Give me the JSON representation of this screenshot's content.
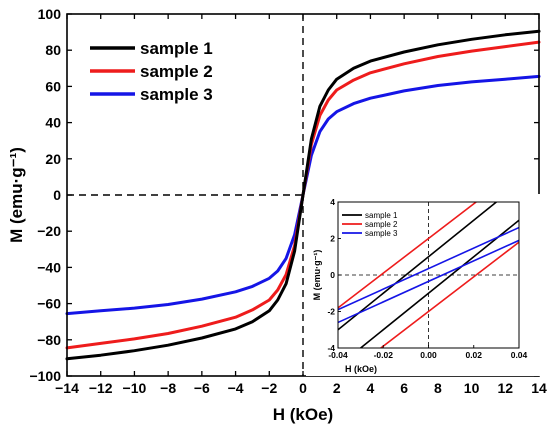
{
  "chart_data": [
    {
      "type": "line",
      "title": "",
      "xlabel": "H (kOe)",
      "ylabel": "M (emu·g⁻¹)",
      "xlim": [
        -14,
        14
      ],
      "ylim": [
        -100,
        100
      ],
      "x_ticks": [
        -14,
        -12,
        -10,
        -8,
        -6,
        -4,
        -2,
        0,
        2,
        4,
        6,
        8,
        10,
        12,
        14
      ],
      "y_ticks": [
        -100,
        -80,
        -60,
        -40,
        -20,
        0,
        20,
        40,
        60,
        80,
        100
      ],
      "grid": false,
      "legend_position": "top-left",
      "reference_lines": {
        "x": 0,
        "y": 0,
        "style": "dashed"
      },
      "x": [
        -14,
        -12,
        -10,
        -8,
        -6,
        -4,
        -3,
        -2,
        -1.5,
        -1,
        -0.5,
        0,
        0.5,
        1,
        1.5,
        2,
        3,
        4,
        6,
        8,
        10,
        12,
        14
      ],
      "series": [
        {
          "name": "sample 1",
          "color": "#000000",
          "values": [
            -90.5,
            -88.5,
            -86,
            -83,
            -79,
            -74,
            -70,
            -64,
            -58,
            -49,
            -31,
            0,
            31,
            49,
            58,
            64,
            70,
            74,
            79,
            83,
            86,
            88.5,
            90.5
          ]
        },
        {
          "name": "sample 2",
          "color": "#ee1c1c",
          "values": [
            -84.5,
            -82,
            -79.5,
            -76.5,
            -72.5,
            -67.5,
            -63.5,
            -58,
            -52.5,
            -44,
            -28,
            0,
            28,
            44,
            52.5,
            58,
            63.5,
            67.5,
            72.5,
            76.5,
            79.5,
            82,
            84.5
          ]
        },
        {
          "name": "sample 3",
          "color": "#1515e6",
          "values": [
            -65.5,
            -64,
            -62.5,
            -60.5,
            -57.5,
            -53.5,
            -50.5,
            -46,
            -42,
            -35,
            -22,
            0,
            22,
            35,
            42,
            46,
            50.5,
            53.5,
            57.5,
            60.5,
            62.5,
            64,
            65.5
          ]
        }
      ]
    },
    {
      "type": "line",
      "title": "",
      "xlabel": "H (kOe)",
      "ylabel": "M (emu·g⁻¹)",
      "xlim": [
        -0.04,
        0.04
      ],
      "ylim": [
        -4,
        4
      ],
      "x_ticks": [
        -0.04,
        -0.02,
        0.0,
        0.02,
        0.04
      ],
      "x_tick_labels": [
        "-0.04",
        "-0.02",
        "0.00",
        "0.02",
        "0.04"
      ],
      "y_ticks": [
        -4,
        -2,
        0,
        2,
        4
      ],
      "grid": false,
      "legend_position": "top-left",
      "reference_lines": {
        "x": 0,
        "y": 0,
        "style": "dashed"
      },
      "x": [
        -0.04,
        0.04
      ],
      "series": [
        {
          "name": "sample 1",
          "color": "#000000",
          "branches": [
            [
              -3.0,
              5.0
            ],
            [
              -5.0,
              3.0
            ]
          ]
        },
        {
          "name": "sample 2",
          "color": "#ee1c1c",
          "branches": [
            [
              -1.8,
              5.8
            ],
            [
              -5.8,
              1.8
            ]
          ]
        },
        {
          "name": "sample 3",
          "color": "#1515e6",
          "branches": [
            [
              -1.9,
              2.6
            ],
            [
              -2.6,
              1.9
            ]
          ]
        }
      ]
    }
  ]
}
